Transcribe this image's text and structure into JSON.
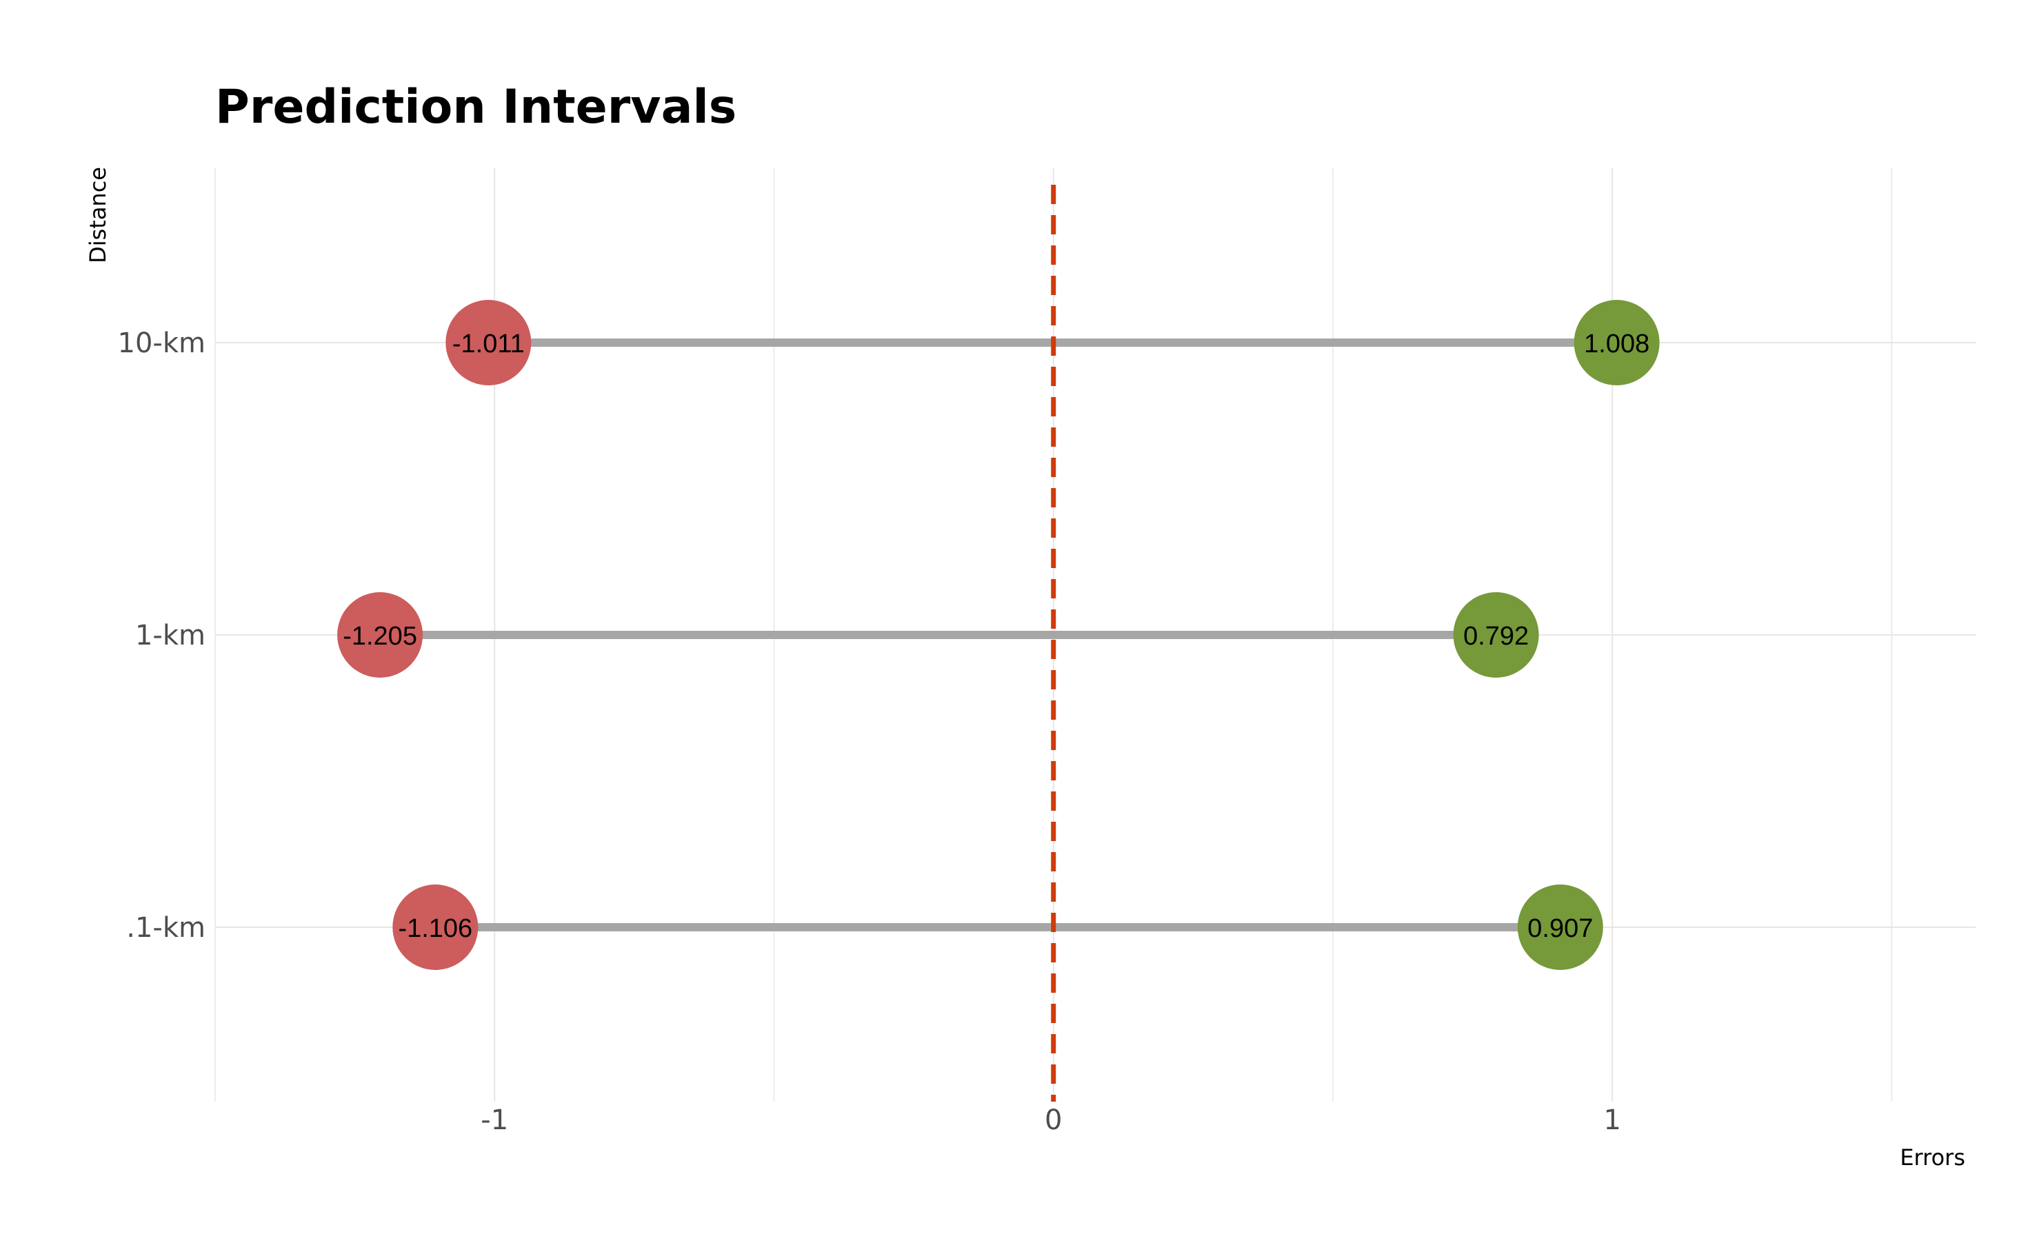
{
  "chart_data": {
    "type": "dumbbell",
    "title": "Prediction Intervals",
    "xlabel": "Errors",
    "ylabel": "Distance",
    "xlim": [
      -1.5,
      1.65
    ],
    "x_ticks": [
      -1,
      0,
      1
    ],
    "x_tick_labels": [
      "-1",
      "0",
      "1"
    ],
    "categories": [
      ".1-km",
      "1-km",
      "10-km"
    ],
    "series": [
      {
        "values": [
          -1.106,
          -1.205,
          -1.011
        ],
        "labels": [
          "-1.106",
          "-1.205",
          "-1.011"
        ]
      },
      {
        "values": [
          0.907,
          0.792,
          1.008
        ],
        "labels": [
          "0.907",
          "0.792",
          "1.008"
        ]
      }
    ],
    "reference_line": {
      "x": 0,
      "style": "dashed"
    },
    "colors": {
      "lower_point": "#cd5c5c",
      "upper_point": "#76993a",
      "segment": "#a6a6a6",
      "reference_line": "#d03b0a",
      "grid": "#e6e6e6"
    },
    "grid": true,
    "legend": "none"
  }
}
